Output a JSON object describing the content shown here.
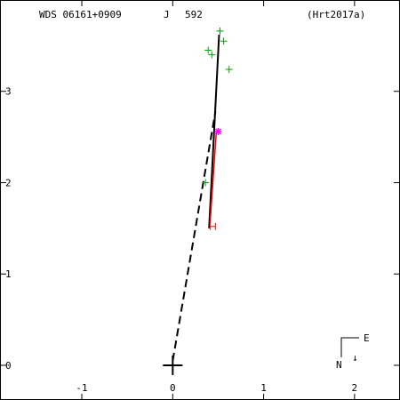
{
  "header": {
    "wds": "WDS 06161+0909",
    "catalog": "J",
    "number": "592",
    "reference": "(Hrt2017a)"
  },
  "compass": {
    "east": "E",
    "north": "N",
    "arrow": "↓"
  },
  "chart_data": {
    "type": "scatter",
    "title": "",
    "xlabel": "",
    "ylabel": "",
    "xlim": [
      -1.9,
      2.5
    ],
    "ylim": [
      -0.38,
      4.0
    ],
    "x_ticks": [
      -1,
      0,
      1,
      2
    ],
    "y_ticks": [
      0,
      1,
      2,
      3
    ],
    "x_tick_labels": [
      "-1",
      "0",
      "1",
      "2"
    ],
    "y_tick_labels": [
      "0",
      "1",
      "2",
      "3"
    ],
    "primary": {
      "x": 0,
      "y": 0
    },
    "series": [
      {
        "marker": "plus",
        "color": "#00a000",
        "points": [
          {
            "x": 0.52,
            "y": 3.66
          },
          {
            "x": 0.56,
            "y": 3.55
          },
          {
            "x": 0.39,
            "y": 3.45
          },
          {
            "x": 0.43,
            "y": 3.4
          },
          {
            "x": 0.62,
            "y": 3.24
          },
          {
            "x": 0.36,
            "y": 2.0
          }
        ]
      },
      {
        "marker": "asterisk",
        "color": "#ff00ff",
        "points": [
          {
            "x": 0.5,
            "y": 2.56
          }
        ]
      },
      {
        "marker": "bar",
        "color": "#ff0000",
        "points": [
          {
            "x": 0.44,
            "y": 1.52
          }
        ]
      }
    ],
    "orbit_segment": {
      "color": "#000000",
      "from": {
        "x": 0.4,
        "y": 1.5
      },
      "to": {
        "x": 0.51,
        "y": 3.62
      }
    },
    "residual_segment": {
      "color": "#ff0000",
      "from": {
        "x": 0.41,
        "y": 1.55
      },
      "to": {
        "x": 0.48,
        "y": 2.56
      }
    },
    "dashed_line": {
      "color": "#000000",
      "from": {
        "x": 0.0,
        "y": 0.05
      },
      "to": {
        "x": 0.47,
        "y": 2.78
      }
    }
  }
}
